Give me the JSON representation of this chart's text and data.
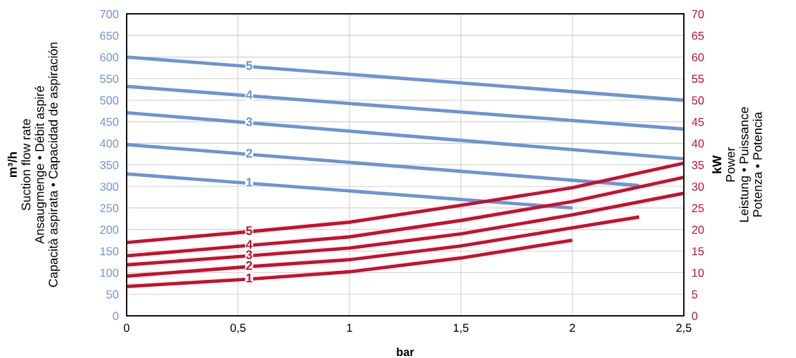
{
  "chart_data": {
    "type": "line",
    "xlabel": "bar",
    "ylabel": "m³/h\nSuction flow rate\nAnsaugmenge • Débit aspiré\nCapacità aspirata • Capacidad de aspiración",
    "y2label": "kW\nPower\nLeistung • Puissance\nPotenza • Potencia",
    "xlim": [
      0,
      2.5
    ],
    "xticks": [
      0,
      {
        "value": 0.5,
        "label": "0,5"
      },
      1,
      {
        "value": 1.5,
        "label": "1,5"
      },
      2,
      {
        "value": 2.5,
        "label": "2,5"
      }
    ],
    "ylim": [
      0,
      700
    ],
    "yticks": [
      0,
      50,
      100,
      150,
      200,
      250,
      300,
      350,
      400,
      450,
      500,
      550,
      600,
      650,
      700
    ],
    "y2lim": [
      0,
      70
    ],
    "y2ticks": [
      0,
      5,
      10,
      15,
      20,
      25,
      30,
      35,
      40,
      45,
      50,
      55,
      60,
      65,
      70
    ],
    "grid": true,
    "line_style": "solid",
    "series": [
      {
        "name": "5",
        "color": "#6f93d3",
        "x": [
          0,
          2.5
        ],
        "values": [
          600,
          500
        ]
      },
      {
        "name": "4",
        "color": "#6f93d3",
        "x": [
          0,
          2.5
        ],
        "values": [
          532,
          433
        ]
      },
      {
        "name": "3",
        "color": "#6f93d3",
        "x": [
          0,
          2.5
        ],
        "values": [
          471,
          364
        ]
      },
      {
        "name": "2",
        "color": "#6f93d3",
        "x": [
          0,
          2.3
        ],
        "values": [
          397,
          302
        ]
      },
      {
        "name": "1",
        "color": "#6f93d3",
        "x": [
          0,
          2
        ],
        "values": [
          329,
          250
        ]
      },
      {
        "name": "5",
        "color": "#c8102e",
        "axis": "y2",
        "x": [
          0,
          0.55,
          1,
          1.5,
          2,
          2.5
        ],
        "values": [
          17,
          19.5,
          21.7,
          25.6,
          29.7,
          35.4
        ]
      },
      {
        "name": "4",
        "color": "#c8102e",
        "axis": "y2",
        "x": [
          0,
          0.55,
          1,
          1.5,
          2,
          2.5
        ],
        "values": [
          13.9,
          16.3,
          18.3,
          22.1,
          26.5,
          32.1
        ]
      },
      {
        "name": "3",
        "color": "#c8102e",
        "axis": "y2",
        "x": [
          0,
          0.55,
          1,
          1.5,
          2,
          2.5
        ],
        "values": [
          11.8,
          13.9,
          15.7,
          19,
          23.4,
          28.4
        ]
      },
      {
        "name": "2",
        "color": "#c8102e",
        "axis": "y2",
        "x": [
          0,
          0.55,
          1,
          1.5,
          2,
          2.3
        ],
        "values": [
          9.2,
          11.4,
          13,
          16.2,
          20.4,
          22.9
        ]
      },
      {
        "name": "1",
        "color": "#c8102e",
        "axis": "y2",
        "x": [
          0,
          0.55,
          1,
          1.5,
          2
        ],
        "values": [
          6.8,
          8.5,
          10.2,
          13.4,
          17.5
        ]
      }
    ]
  }
}
